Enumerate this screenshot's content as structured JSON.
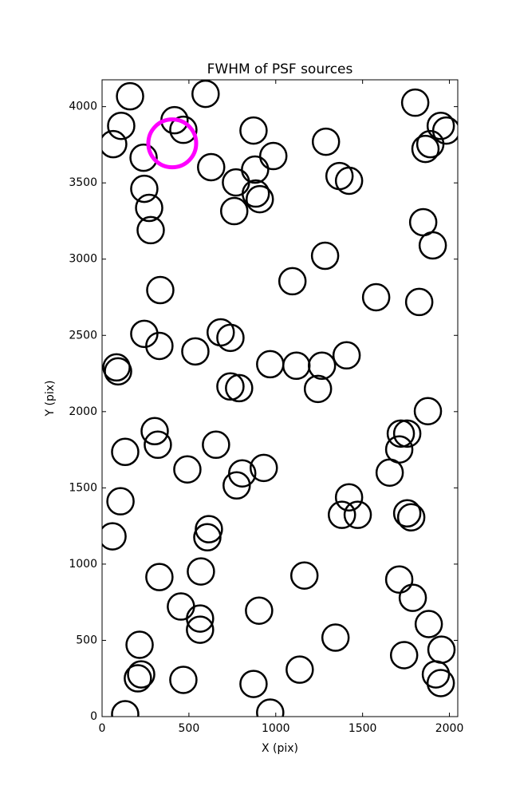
{
  "chart_data": {
    "type": "scatter",
    "title": "FWHM of PSF sources",
    "x_label": "X (pix)",
    "y_label": "Y (pix)",
    "xlim": [
      0,
      2048
    ],
    "ylim": [
      0,
      4176
    ],
    "xticks": [
      0,
      500,
      1000,
      1500,
      2000
    ],
    "yticks": [
      0,
      500,
      1000,
      1500,
      2000,
      2500,
      3000,
      3500,
      4000
    ],
    "series": [
      {
        "color": "#000000",
        "x": [
          161,
          596,
          110,
          64,
          417,
          468,
          239,
          628,
          243,
          271,
          280,
          335,
          243,
          330,
          537,
          683,
          739,
          83,
          92,
          303,
          321,
          133,
          656,
          491,
          807,
          775,
          931,
          106,
          60,
          615,
          606,
          330,
          569,
          454,
          564,
          564,
          216,
          225,
          206,
          468,
          133,
          872,
          986,
          881,
          771,
          761,
          885,
          908,
          1289,
          1367,
          1422,
          1096,
          1284,
          1578,
          968,
          1119,
          1266,
          1243,
          1408,
          739,
          789,
          1422,
          1381,
          1472,
          1165,
          904,
          1344,
          1138,
          872,
          968,
          1803,
          1950,
          1982,
          1890,
          1862,
          1849,
          1904,
          1826,
          1876,
          1720,
          1757,
          1711,
          1656,
          1757,
          1780,
          1711,
          1789,
          1881,
          1954,
          1739,
          1922,
          1950
        ],
        "y": [
          4068,
          4084,
          3874,
          3754,
          3911,
          3848,
          3665,
          3603,
          3461,
          3336,
          3190,
          2797,
          2510,
          2431,
          2395,
          2520,
          2484,
          2290,
          2264,
          1872,
          1783,
          1736,
          1783,
          1621,
          1595,
          1516,
          1631,
          1412,
          1182,
          1229,
          1176,
          915,
          952,
          722,
          643,
          570,
          471,
          277,
          251,
          241,
          16,
          3843,
          3676,
          3587,
          3503,
          3315,
          3430,
          3393,
          3770,
          3545,
          3514,
          2855,
          3022,
          2750,
          2311,
          2301,
          2301,
          2149,
          2369,
          2165,
          2154,
          1438,
          1323,
          1323,
          925,
          695,
          518,
          308,
          214,
          26,
          4026,
          3874,
          3843,
          3754,
          3723,
          3242,
          3090,
          2719,
          2003,
          1856,
          1856,
          1752,
          1600,
          1333,
          1307,
          899,
          779,
          607,
          439,
          403,
          277,
          220
        ]
      },
      {
        "color": "#ff00ff",
        "x": [
          404
        ],
        "y": [
          3759
        ]
      }
    ]
  }
}
